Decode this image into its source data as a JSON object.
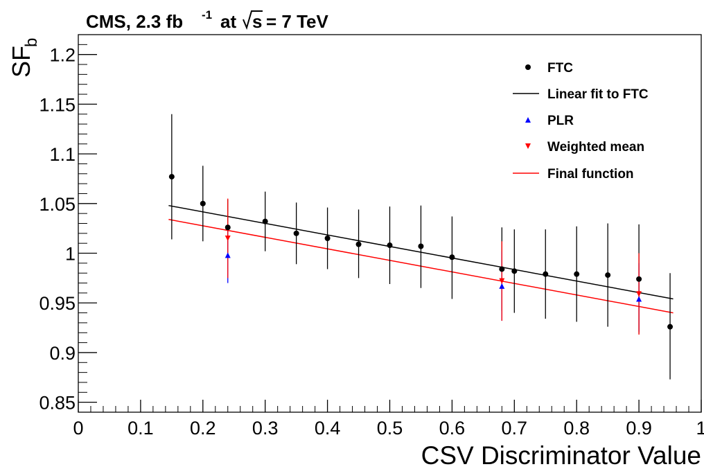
{
  "chart_data": {
    "type": "scatter",
    "title": "CMS, 2.3 fb",
    "title_sup": "-1",
    "title_mid": "at",
    "title_sqrt": "s",
    "title_tail": "= 7 TeV",
    "xlabel": "CSV Discriminator Value",
    "ylabel_main": "SF",
    "ylabel_sub": "b",
    "xlim": [
      0,
      1
    ],
    "ylim": [
      0.84,
      1.22
    ],
    "x_ticks": [
      {
        "v": 0,
        "label": "0"
      },
      {
        "v": 0.1,
        "label": "0.1"
      },
      {
        "v": 0.2,
        "label": "0.2"
      },
      {
        "v": 0.3,
        "label": "0.3"
      },
      {
        "v": 0.4,
        "label": "0.4"
      },
      {
        "v": 0.5,
        "label": "0.5"
      },
      {
        "v": 0.6,
        "label": "0.6"
      },
      {
        "v": 0.7,
        "label": "0.7"
      },
      {
        "v": 0.8,
        "label": "0.8"
      },
      {
        "v": 0.9,
        "label": "0.9"
      },
      {
        "v": 1,
        "label": "1"
      }
    ],
    "y_ticks": [
      {
        "v": 0.85,
        "label": "0.85"
      },
      {
        "v": 0.9,
        "label": "0.9"
      },
      {
        "v": 0.95,
        "label": "0.95"
      },
      {
        "v": 1.0,
        "label": "1"
      },
      {
        "v": 1.05,
        "label": "1.05"
      },
      {
        "v": 1.1,
        "label": "1.1"
      },
      {
        "v": 1.15,
        "label": "1.15"
      },
      {
        "v": 1.2,
        "label": "1.2"
      }
    ],
    "series": [
      {
        "name": "FTC",
        "marker": "circle",
        "color": "#000000",
        "points": [
          {
            "x": 0.15,
            "y": 1.077,
            "lo": 1.014,
            "hi": 1.14
          },
          {
            "x": 0.2,
            "y": 1.05,
            "lo": 1.012,
            "hi": 1.088
          },
          {
            "x": 0.24,
            "y": 1.026,
            "lo": 0.997,
            "hi": 1.054
          },
          {
            "x": 0.3,
            "y": 1.032,
            "lo": 1.002,
            "hi": 1.062
          },
          {
            "x": 0.35,
            "y": 1.02,
            "lo": 0.989,
            "hi": 1.051
          },
          {
            "x": 0.4,
            "y": 1.015,
            "lo": 0.984,
            "hi": 1.046
          },
          {
            "x": 0.45,
            "y": 1.009,
            "lo": 0.975,
            "hi": 1.044
          },
          {
            "x": 0.5,
            "y": 1.008,
            "lo": 0.969,
            "hi": 1.047
          },
          {
            "x": 0.55,
            "y": 1.007,
            "lo": 0.965,
            "hi": 1.048
          },
          {
            "x": 0.6,
            "y": 0.996,
            "lo": 0.954,
            "hi": 1.037
          },
          {
            "x": 0.68,
            "y": 0.984,
            "lo": 0.942,
            "hi": 1.026
          },
          {
            "x": 0.7,
            "y": 0.982,
            "lo": 0.94,
            "hi": 1.024
          },
          {
            "x": 0.75,
            "y": 0.979,
            "lo": 0.934,
            "hi": 1.024
          },
          {
            "x": 0.8,
            "y": 0.979,
            "lo": 0.931,
            "hi": 1.027
          },
          {
            "x": 0.85,
            "y": 0.978,
            "lo": 0.926,
            "hi": 1.03
          },
          {
            "x": 0.9,
            "y": 0.974,
            "lo": 0.919,
            "hi": 1.029
          },
          {
            "x": 0.95,
            "y": 0.926,
            "lo": 0.873,
            "hi": 0.98
          }
        ]
      },
      {
        "name": "PLR",
        "marker": "triangle-up",
        "color": "#0000ff",
        "points": [
          {
            "x": 0.24,
            "y": 0.998,
            "lo": 0.97,
            "hi": 1.027
          },
          {
            "x": 0.68,
            "y": 0.967,
            "lo": 0.932,
            "hi": 1.002
          },
          {
            "x": 0.9,
            "y": 0.954,
            "lo": 0.921,
            "hi": 0.99
          }
        ]
      },
      {
        "name": "Weighted mean",
        "marker": "triangle-down",
        "color": "#ff0000",
        "points": [
          {
            "x": 0.24,
            "y": 1.015,
            "lo": 0.975,
            "hi": 1.055
          },
          {
            "x": 0.68,
            "y": 0.972,
            "lo": 0.932,
            "hi": 1.012
          },
          {
            "x": 0.9,
            "y": 0.959,
            "lo": 0.918,
            "hi": 1.0
          }
        ]
      }
    ],
    "lines": [
      {
        "name": "Linear fit to FTC",
        "color": "#000000",
        "x": [
          0.145,
          0.955
        ],
        "y": [
          1.048,
          0.954
        ]
      },
      {
        "name": "Final function",
        "color": "#ff0000",
        "x": [
          0.145,
          0.955
        ],
        "y": [
          1.034,
          0.94
        ]
      }
    ],
    "legend": {
      "placement": "top-right",
      "entries": [
        {
          "label": "FTC",
          "kind": "circle",
          "color": "#000000"
        },
        {
          "label": "Linear fit to FTC",
          "kind": "line",
          "color": "#000000"
        },
        {
          "label": "PLR",
          "kind": "triangle-up",
          "color": "#0000ff"
        },
        {
          "label": "Weighted mean",
          "kind": "triangle-down",
          "color": "#ff0000"
        },
        {
          "label": "Final function",
          "kind": "line",
          "color": "#ff0000"
        }
      ]
    }
  }
}
